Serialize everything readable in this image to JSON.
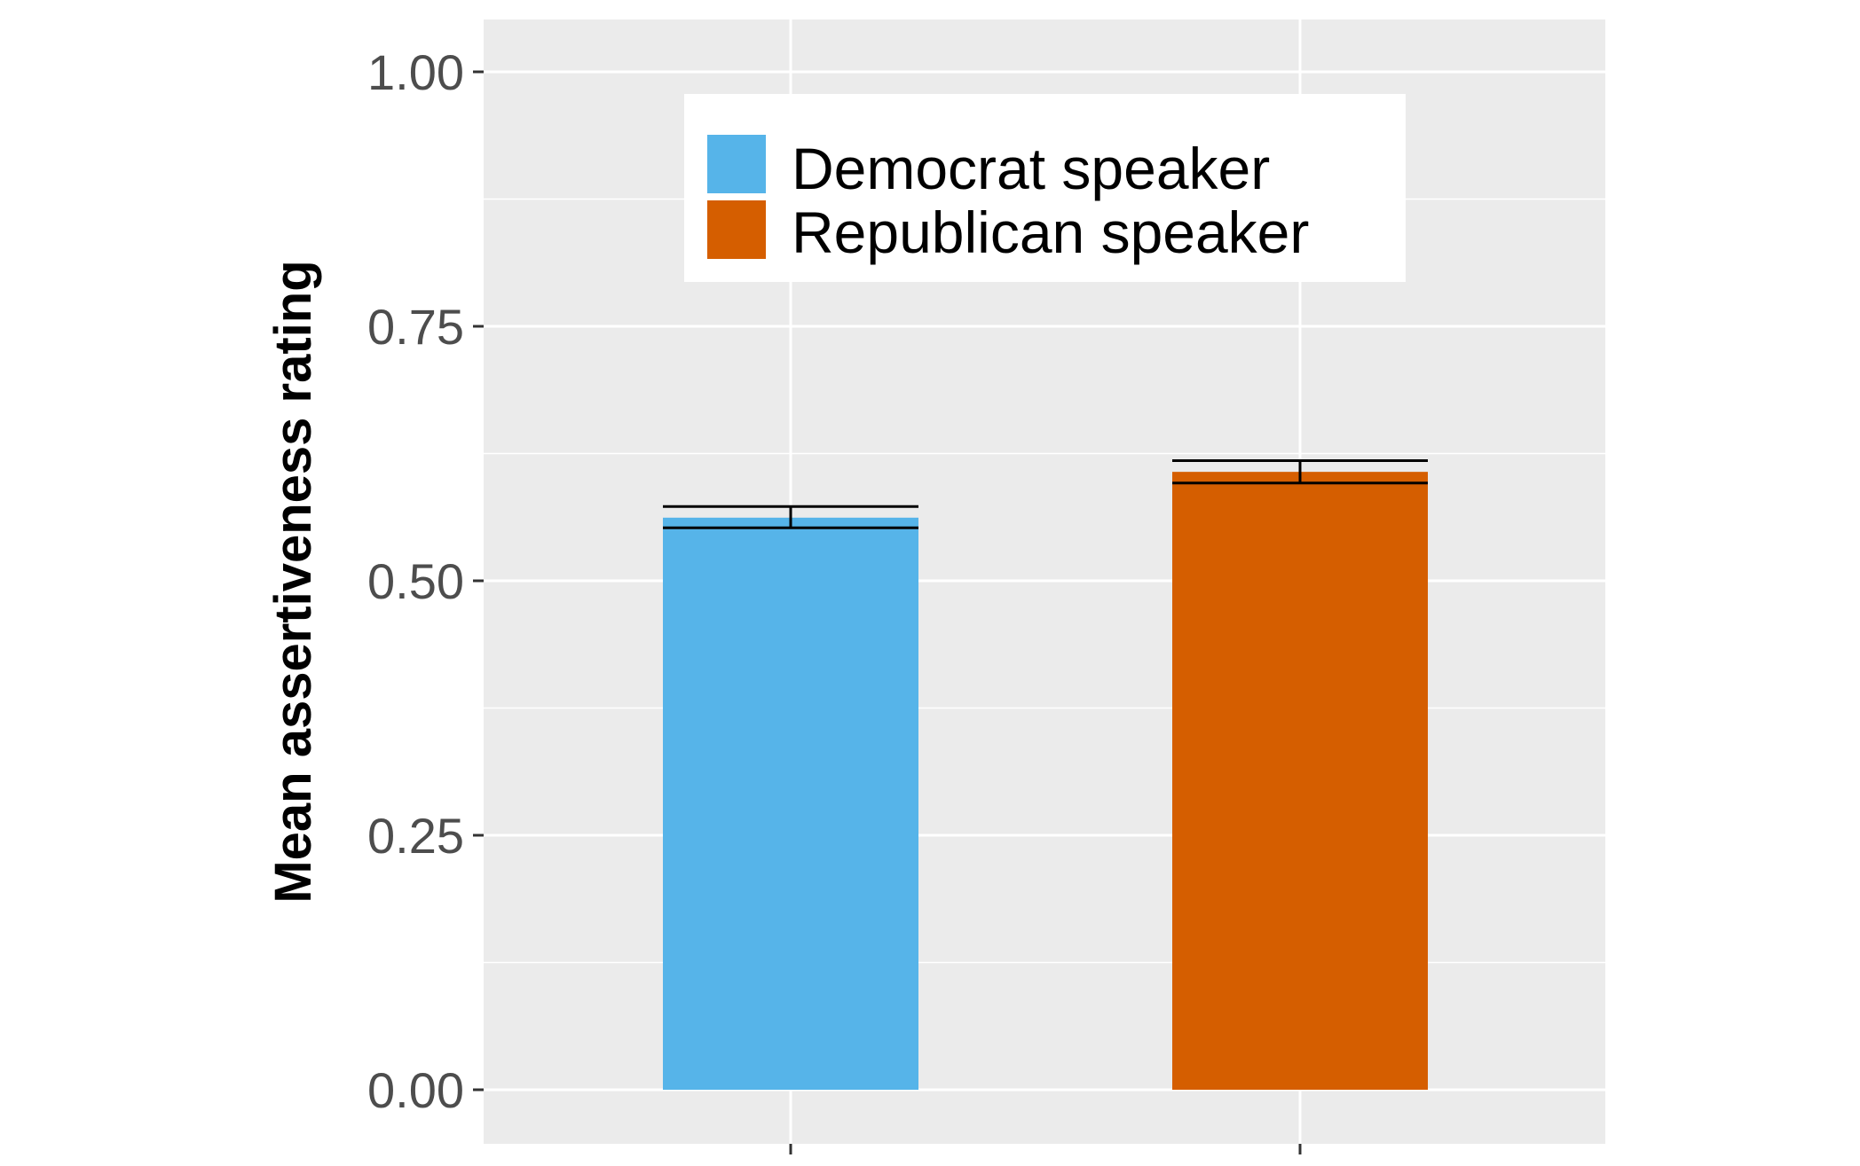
{
  "chart_data": {
    "type": "bar",
    "categories": [
      "Democrat speaker",
      "Republican speaker"
    ],
    "values": [
      0.562,
      0.607
    ],
    "errors": [
      {
        "low": 0.552,
        "high": 0.573
      },
      {
        "low": 0.596,
        "high": 0.618
      }
    ],
    "colors": [
      "#56B4E9",
      "#D55E00"
    ],
    "ylabel": "Mean assertiveness rating",
    "ylim": [
      -0.05,
      1.05
    ],
    "yticks": [
      "0.00",
      "0.25",
      "0.50",
      "0.75",
      "1.00"
    ],
    "grid": true,
    "legend": {
      "position": "top-center",
      "entries": [
        "Democrat speaker",
        "Republican speaker"
      ]
    },
    "panel_background": "#EBEBEB",
    "grid_color": "#FFFFFF"
  }
}
